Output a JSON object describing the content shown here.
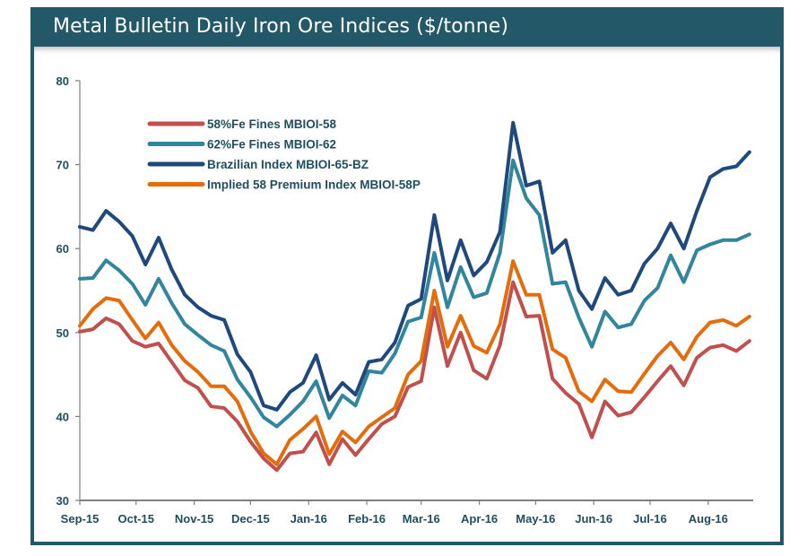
{
  "chart_data": {
    "type": "line",
    "title": "Metal Bulletin Daily Iron Ore Indices ($/tonne)",
    "xlabel": "",
    "ylabel": "",
    "ylim": [
      30,
      80
    ],
    "yticks": [
      30,
      40,
      50,
      60,
      70,
      80
    ],
    "xlim": [
      "2015-09-01",
      "2016-08-25"
    ],
    "xticks": [
      {
        "date": "2015-09-01",
        "label": "Sep-15"
      },
      {
        "date": "2015-10-01",
        "label": "Oct-15"
      },
      {
        "date": "2015-11-01",
        "label": "Nov-15"
      },
      {
        "date": "2015-12-01",
        "label": "Dec-15"
      },
      {
        "date": "2016-01-01",
        "label": "Jan-16"
      },
      {
        "date": "2016-02-01",
        "label": "Feb-16"
      },
      {
        "date": "2016-03-01",
        "label": "Mar-16"
      },
      {
        "date": "2016-04-01",
        "label": "Apr-16"
      },
      {
        "date": "2016-05-01",
        "label": "May-16"
      },
      {
        "date": "2016-06-01",
        "label": "Jun-16"
      },
      {
        "date": "2016-07-01",
        "label": "Jul-16"
      },
      {
        "date": "2016-08-01",
        "label": "Aug-16"
      }
    ],
    "grid": false,
    "legend_placement": "top-left",
    "x": [
      "2015-09-01",
      "2015-09-08",
      "2015-09-15",
      "2015-09-22",
      "2015-09-29",
      "2015-10-06",
      "2015-10-13",
      "2015-10-20",
      "2015-10-27",
      "2015-11-03",
      "2015-11-10",
      "2015-11-17",
      "2015-11-24",
      "2015-12-01",
      "2015-12-08",
      "2015-12-15",
      "2015-12-22",
      "2015-12-29",
      "2016-01-05",
      "2016-01-12",
      "2016-01-19",
      "2016-01-26",
      "2016-02-02",
      "2016-02-09",
      "2016-02-16",
      "2016-02-23",
      "2016-03-01",
      "2016-03-08",
      "2016-03-15",
      "2016-03-22",
      "2016-03-29",
      "2016-04-05",
      "2016-04-12",
      "2016-04-19",
      "2016-04-26",
      "2016-05-03",
      "2016-05-10",
      "2016-05-17",
      "2016-05-24",
      "2016-05-31",
      "2016-06-07",
      "2016-06-14",
      "2016-06-21",
      "2016-06-28",
      "2016-07-05",
      "2016-07-12",
      "2016-07-19",
      "2016-07-26",
      "2016-08-02",
      "2016-08-09",
      "2016-08-16",
      "2016-08-23"
    ],
    "series": [
      {
        "name": "58%Fe Fines MBIOI-58",
        "color": "#c0504d",
        "values": [
          50.1,
          50.4,
          51.7,
          51,
          49,
          48.3,
          48.7,
          46.5,
          44.3,
          43.4,
          41.2,
          41,
          39.4,
          37,
          35,
          33.6,
          35.6,
          35.8,
          38.1,
          34.3,
          37.3,
          35.4,
          37.3,
          39.1,
          40,
          43.5,
          44.2,
          53,
          46,
          50,
          45.5,
          44.5,
          48.5,
          56,
          51.9,
          52,
          44.5,
          42.8,
          41.5,
          37.5,
          41.8,
          40.1,
          40.5,
          42.3,
          44.2,
          46,
          43.7,
          47,
          48.2,
          48.5,
          47.8,
          49
        ]
      },
      {
        "name": "62%Fe Fines MBIOI-62",
        "color": "#31859c",
        "values": [
          56.4,
          56.5,
          58.6,
          57.4,
          55.8,
          53.3,
          56.4,
          53.5,
          51,
          49.7,
          48.5,
          47.8,
          44.4,
          42.3,
          39.9,
          38.8,
          40.2,
          41.8,
          44.2,
          39.8,
          42.5,
          41.3,
          45.4,
          45.2,
          47.5,
          51.3,
          51.8,
          59.5,
          53,
          57.8,
          54.2,
          54.7,
          59.5,
          70.5,
          66,
          64,
          55.8,
          56,
          51.8,
          48.3,
          52.5,
          50.6,
          51,
          53.8,
          55.3,
          59.2,
          56,
          59.8,
          60.5,
          61,
          61,
          61.7
        ]
      },
      {
        "name": "Brazilian Index MBIOI-65-BZ",
        "color": "#1f497d",
        "values": [
          62.6,
          62.2,
          64.5,
          63.2,
          61.5,
          58.1,
          61.3,
          57.5,
          54.5,
          53,
          52,
          51.5,
          47.4,
          45.3,
          41.3,
          40.8,
          42.9,
          44,
          47.3,
          42,
          44,
          42.6,
          46.5,
          46.8,
          48.8,
          53.2,
          54,
          64,
          56.2,
          61,
          56.8,
          58.4,
          62,
          75,
          67.5,
          68,
          59.5,
          61,
          55,
          52.8,
          56.5,
          54.5,
          55,
          58.2,
          60,
          63,
          60,
          64.5,
          68.5,
          69.5,
          69.8,
          71.5
        ]
      },
      {
        "name": "Implied 58 Premium Index MBIOI-58P",
        "color": "#e46c0a",
        "values": [
          50.8,
          52.8,
          54.1,
          53.8,
          51.5,
          49.3,
          51.2,
          48.5,
          46.6,
          45.3,
          43.6,
          43.6,
          41.8,
          38.2,
          35.6,
          34.3,
          37.2,
          38.5,
          40,
          35.5,
          38.2,
          36.9,
          38.8,
          39.9,
          41,
          45,
          46.6,
          55,
          48.3,
          52,
          48.4,
          47.6,
          51,
          58.5,
          54.5,
          54.5,
          48,
          47,
          43,
          41.8,
          44.4,
          43,
          42.9,
          45.1,
          47.2,
          48.8,
          46.8,
          49.5,
          51.2,
          51.5,
          50.8,
          51.9
        ]
      }
    ]
  },
  "colors": {
    "frame": "#225868",
    "axis": "#7f7f7f",
    "text": "#1f4e60"
  }
}
